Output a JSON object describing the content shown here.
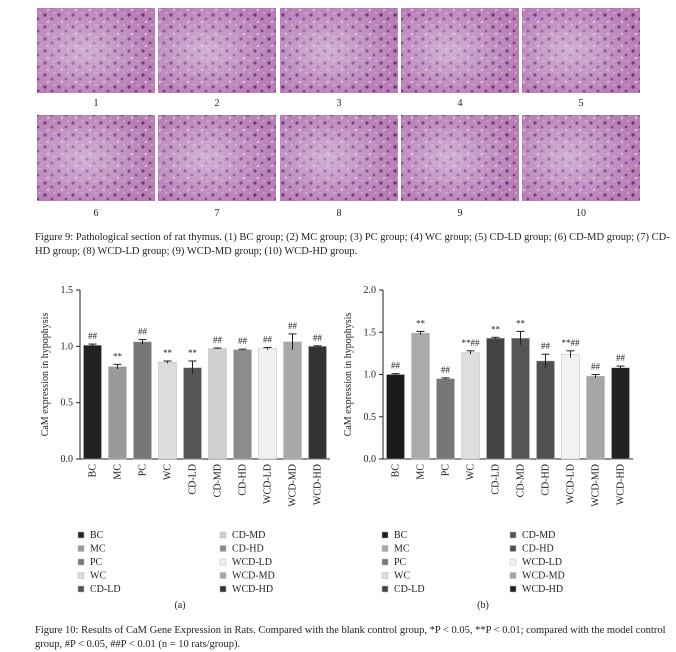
{
  "figure_9": {
    "panels": [
      "1",
      "2",
      "3",
      "4",
      "5",
      "6",
      "7",
      "8",
      "9",
      "10"
    ],
    "caption": "Figure 9: Pathological section of rat thymus. (1) BC group; (2) MC group; (3) PC group; (4) WC group; (5) CD-LD group; (6) CD-MD group; (7) CD-HD group; (8) WCD-LD group; (9) WCD-MD group; (10) WCD-HD group."
  },
  "chart_data": [
    {
      "type": "bar",
      "panel_label": "(a)",
      "y_label": "CaM expression in hypophysis",
      "categories": [
        "BC",
        "MC",
        "PC",
        "WC",
        "CD-LD",
        "CD-MD",
        "CD-HD",
        "WCD-LD",
        "WCD-MD",
        "WCD-HD"
      ],
      "values": [
        1.01,
        0.82,
        1.04,
        0.86,
        0.81,
        0.98,
        0.97,
        0.98,
        1.04,
        1.0
      ],
      "errors": [
        0.01,
        0.02,
        0.02,
        0.01,
        0.06,
        0.005,
        0.005,
        0.01,
        0.07,
        0.005
      ],
      "annotations": [
        "##",
        "**",
        "##",
        "**",
        "**",
        "##",
        "##",
        "##",
        "##",
        "##"
      ],
      "colors": [
        "#222222",
        "#9a9a9a",
        "#777777",
        "#dcdcdc",
        "#555555",
        "#cfcfcf",
        "#8c8c8c",
        "#f0f0f0",
        "#a8a8a8",
        "#333333"
      ],
      "ylim": [
        0,
        1.5
      ],
      "yticks": [
        {
          "value": 0,
          "label": "0.0"
        },
        {
          "value": 0.5,
          "label": "0.5"
        },
        {
          "value": 1,
          "label": "1.0"
        },
        {
          "value": 1.5,
          "label": "1.5"
        }
      ]
    },
    {
      "type": "bar",
      "panel_label": "(b)",
      "y_label": "CaM expression in hypophysis",
      "categories": [
        "BC",
        "MC",
        "PC",
        "WC",
        "CD-LD",
        "CD-MD",
        "CD-HD",
        "WCD-LD",
        "WCD-MD",
        "WCD-HD"
      ],
      "values": [
        1.0,
        1.49,
        0.95,
        1.26,
        1.43,
        1.43,
        1.16,
        1.24,
        0.98,
        1.08
      ],
      "errors": [
        0.01,
        0.02,
        0.01,
        0.02,
        0.01,
        0.08,
        0.08,
        0.04,
        0.02,
        0.02
      ],
      "annotations": [
        "##",
        "**",
        "##",
        "**##",
        "**",
        "**",
        "##",
        "**##",
        "##",
        "##"
      ],
      "colors": [
        "#1a1a1a",
        "#aaaaaa",
        "#777777",
        "#dedede",
        "#444444",
        "#555555",
        "#505050",
        "#f2f2f2",
        "#a5a5a5",
        "#222222"
      ],
      "ylim": [
        0,
        2
      ],
      "yticks": [
        {
          "value": 0,
          "label": "0.0"
        },
        {
          "value": 0.5,
          "label": "0.5"
        },
        {
          "value": 1,
          "label": "1.0"
        },
        {
          "value": 1.5,
          "label": "1.5"
        },
        {
          "value": 2,
          "label": "2.0"
        }
      ]
    }
  ],
  "figure_10": {
    "caption": "Figure 10: Results of CaM Gene Expression in Rats. Compared with the blank control group, *P < 0.05, **P < 0.01; compared with the model control group, #P < 0.05, ##P < 0.01 (n = 10 rats/group)."
  }
}
